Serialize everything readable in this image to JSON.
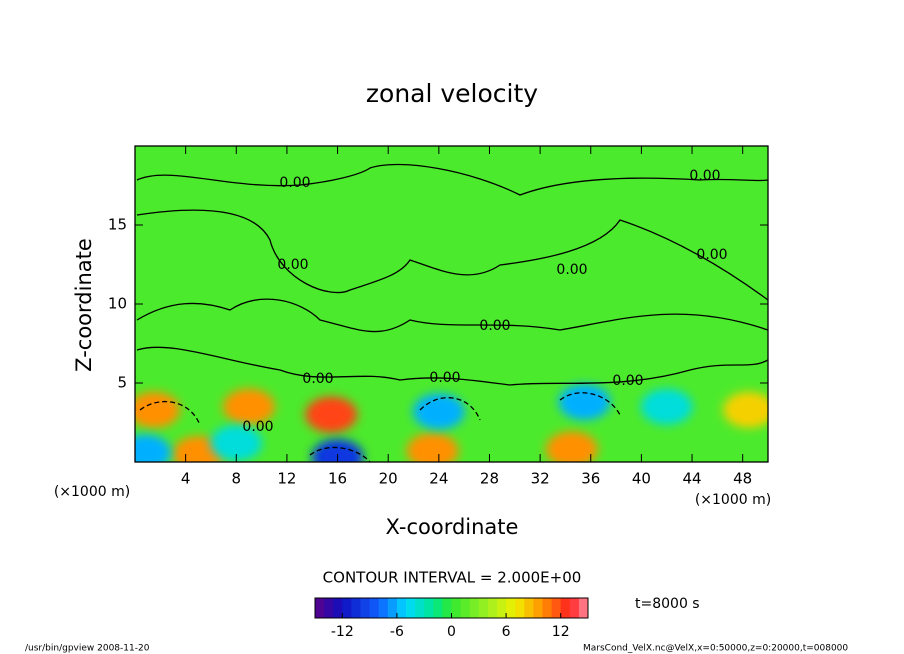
{
  "chart_data": {
    "type": "contour",
    "title": "zonal velocity",
    "xlabel": "X-coordinate",
    "ylabel": "Z-coordinate",
    "xunit": "(×1000 m)",
    "yunit": "(×1000 m)",
    "xlim": [
      0,
      50
    ],
    "xticks": [
      4,
      8,
      12,
      16,
      20,
      24,
      28,
      32,
      36,
      40,
      44,
      48
    ],
    "ylim": [
      0,
      20
    ],
    "yticks": [
      5,
      10,
      15
    ],
    "contour_interval": "CONTOUR INTERVAL = 2.000E+00",
    "contour_labels": [
      "0.00",
      "0.00",
      "0.00",
      "0.00",
      "0.00",
      "0.00",
      "0.00",
      "0.00",
      "0.00",
      "0.00"
    ],
    "time": "t=8000 s",
    "colorbar": {
      "lim": [
        -15,
        15
      ],
      "ticks": [
        -12,
        -6,
        0,
        6,
        12
      ]
    },
    "field": {
      "background": 1,
      "features": [
        {
          "x": 1.5,
          "z": 3.3,
          "value": 10
        },
        {
          "x": 9,
          "z": 3.5,
          "value": 10
        },
        {
          "x": 15.5,
          "z": 3,
          "value": 12
        },
        {
          "x": 23.5,
          "z": 0.7,
          "value": 10
        },
        {
          "x": 5,
          "z": 0.5,
          "value": 10
        },
        {
          "x": 34.5,
          "z": 0.8,
          "value": 10
        },
        {
          "x": 48.5,
          "z": 3.3,
          "value": 8
        },
        {
          "x": 0.8,
          "z": 0.6,
          "value": -6
        },
        {
          "x": 16,
          "z": 0.3,
          "value": -10
        },
        {
          "x": 24,
          "z": 3.2,
          "value": -6
        },
        {
          "x": 35.5,
          "z": 3.8,
          "value": -6
        },
        {
          "x": 42,
          "z": 3.5,
          "value": -4
        },
        {
          "x": 8,
          "z": 1.2,
          "value": -4
        }
      ]
    },
    "footer_left": "/usr/bin/gpview  2008-11-20",
    "footer_right": "MarsCond_VelX.nc@VelX,x=0:50000,z=0:20000,t=008000"
  }
}
